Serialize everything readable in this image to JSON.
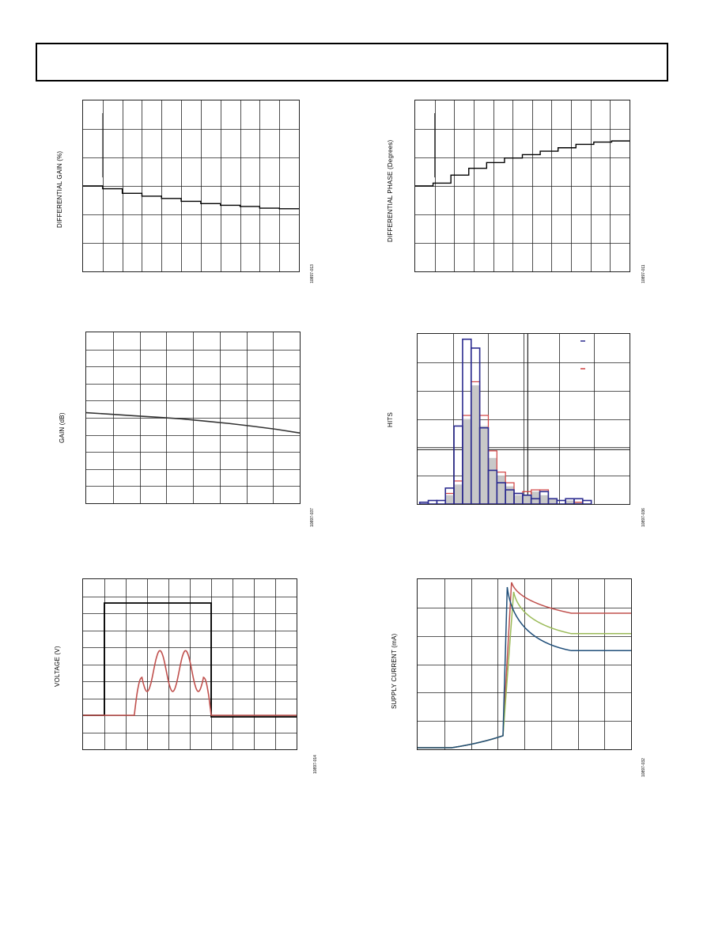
{
  "header": {
    "title": ""
  },
  "charts": [
    {
      "id": "dg",
      "ylabel": "DIFFERENTIAL GAIN (%)",
      "figure_id": "10897-013"
    },
    {
      "id": "dp",
      "ylabel": "DIFFERENTIAL PHASE (Degrees)",
      "figure_id": "10897-011"
    },
    {
      "id": "gain",
      "ylabel": "GAIN (dB)",
      "figure_id": "10897-037"
    },
    {
      "id": "hits",
      "ylabel": "HITS",
      "figure_id": "10897-036"
    },
    {
      "id": "volt",
      "ylabel": "VOLTAGE (V)",
      "figure_id": "10897-014"
    },
    {
      "id": "isup",
      "ylabel": "SUPPLY CURRENT (mA)",
      "figure_id": "10897-032"
    }
  ],
  "chart_data": [
    {
      "type": "line",
      "title": "",
      "ylabel": "DIFFERENTIAL GAIN (%)",
      "x": [
        0,
        1,
        2,
        3,
        4,
        5,
        6,
        7,
        8,
        9,
        10
      ],
      "series": [
        {
          "values": [
            0.0,
            -0.05,
            -0.13,
            -0.18,
            -0.22,
            -0.27,
            -0.31,
            -0.34,
            -0.36,
            -0.39,
            -0.4
          ]
        }
      ],
      "ylim": [
        -1.5,
        1.5
      ],
      "grid": true,
      "step": true,
      "color": "#000000"
    },
    {
      "type": "line",
      "title": "",
      "ylabel": "DIFFERENTIAL PHASE (Degrees)",
      "x": [
        0,
        1,
        2,
        3,
        4,
        5,
        6,
        7,
        8,
        9,
        10,
        11
      ],
      "series": [
        {
          "values": [
            0.0,
            0.05,
            0.19,
            0.31,
            0.41,
            0.49,
            0.55,
            0.61,
            0.67,
            0.73,
            0.77,
            0.79
          ]
        }
      ],
      "ylim": [
        -1.5,
        1.5
      ],
      "grid": true,
      "step": true,
      "color": "#000000"
    },
    {
      "type": "line",
      "title": "",
      "ylabel": "GAIN (dB)",
      "x": [
        0,
        1,
        2,
        3,
        4,
        5,
        6,
        7,
        8,
        9
      ],
      "series": [
        {
          "values": [
            0.0,
            -0.1,
            -0.2,
            -0.3,
            -0.4,
            -0.55,
            -0.7,
            -0.88,
            -1.08,
            -1.32
          ]
        }
      ],
      "ylim": [
        -5,
        5
      ],
      "grid": true,
      "color": "#333333"
    },
    {
      "type": "bar",
      "title": "",
      "ylabel": "HITS",
      "categories": [
        "1",
        "2",
        "3",
        "4",
        "5",
        "6",
        "7",
        "8",
        "9",
        "10",
        "11",
        "12",
        "13",
        "14",
        "15",
        "16",
        "17",
        "18",
        "19",
        "20",
        "21"
      ],
      "series": [
        {
          "values": [
            1,
            2,
            2,
            9,
            44,
            93,
            88,
            43,
            19,
            12,
            8,
            6,
            5,
            3,
            7,
            3,
            2,
            3,
            3,
            2,
            0
          ],
          "color": "#2b2b8f"
        },
        {
          "values": [
            0,
            0,
            0,
            6,
            13,
            50,
            69,
            50,
            30,
            18,
            12,
            6,
            7,
            8,
            8,
            3,
            0,
            3,
            1,
            0,
            0
          ],
          "color": "#d04040"
        },
        {
          "values": [
            0,
            0,
            0,
            5,
            11,
            48,
            67,
            44,
            26,
            16,
            10,
            5,
            5,
            7,
            5,
            3,
            0,
            2,
            1,
            0,
            0
          ],
          "color": "#c8c8c8"
        }
      ],
      "ylim": [
        0,
        96
      ],
      "grid": true
    },
    {
      "type": "line",
      "title": "",
      "ylabel": "VOLTAGE (V)",
      "ylim": [
        -1,
        1
      ],
      "grid": true,
      "series": [
        {
          "color": "#000000",
          "values": [
            -0.22,
            -0.22,
            0.8,
            0.8,
            0.8,
            0.8,
            0.8,
            -0.22,
            -0.22,
            -0.22
          ]
        },
        {
          "color": "#c0504d",
          "values": [
            -0.22,
            -0.22,
            -0.22,
            0.34,
            0.05,
            0.34,
            0.05,
            0.34,
            -0.22,
            -0.22
          ]
        }
      ],
      "x": [
        0,
        1,
        1.3,
        2.4,
        3.2,
        4,
        4.7,
        5.2,
        5.5,
        10
      ]
    },
    {
      "type": "line",
      "title": "",
      "ylabel": "SUPPLY CURRENT (mA)",
      "x": [
        0,
        1,
        2,
        3,
        3.4,
        3.75,
        3.9,
        4.2,
        5,
        6,
        8
      ],
      "ylim": [
        0,
        12
      ],
      "grid": true,
      "series": [
        {
          "color": "#c0504d",
          "values": [
            0,
            0,
            0.2,
            0.8,
            1.2,
            9,
            11.7,
            10,
            9.4,
            9.2,
            9.2
          ]
        },
        {
          "color": "#9bbb59",
          "values": [
            0,
            0,
            0.2,
            0.8,
            1.2,
            8.5,
            10.3,
            8.6,
            8.2,
            8.1,
            8.1
          ]
        },
        {
          "color": "#1f4e79",
          "values": [
            0,
            0,
            0.2,
            0.8,
            1.2,
            8,
            10.8,
            7.6,
            7.2,
            7.0,
            7.0
          ]
        }
      ]
    }
  ]
}
